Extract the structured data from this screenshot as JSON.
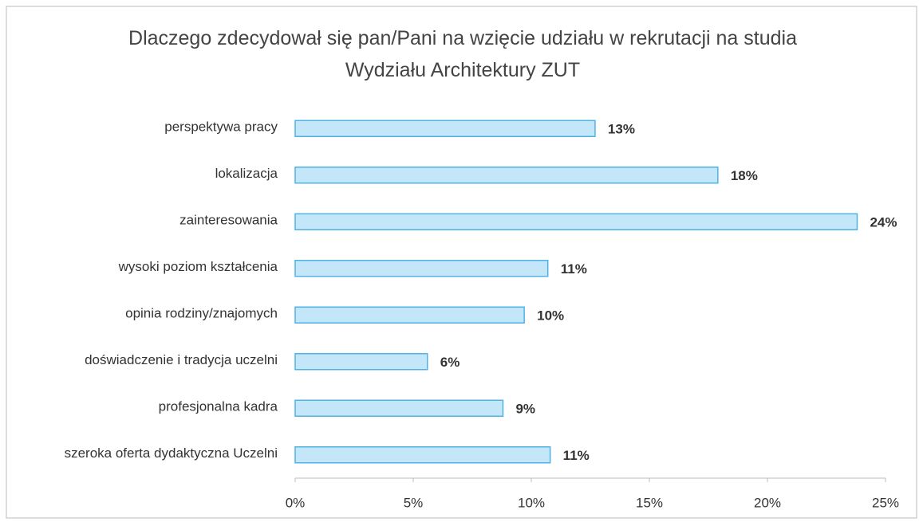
{
  "chart_data": {
    "type": "barh",
    "title": "Dlaczego zdecydował się pan/Pani na wzięcie udziału w rekrutacji na studia Wydziału Architektury ZUT",
    "categories": [
      "perspektywa pracy",
      "lokalizacja",
      "zainteresowania",
      "wysoki poziom kształcenia",
      "opinia rodziny/znajomych",
      "doświadczenie i tradycja uczelni",
      "profesjonalna kadra",
      "szeroka oferta dydaktyczna Uczelni"
    ],
    "values": [
      12.7,
      17.9,
      23.8,
      10.7,
      9.7,
      5.6,
      8.8,
      10.8
    ],
    "value_labels": [
      "13%",
      "18%",
      "24%",
      "11%",
      "10%",
      "6%",
      "9%",
      "11%"
    ],
    "color": "#c3e6f8",
    "edge_color": "#4fb3e6",
    "xlim": [
      0,
      25
    ],
    "xticks": [
      {
        "value": 0,
        "label": "0%"
      },
      {
        "value": 5,
        "label": "5%"
      },
      {
        "value": 10,
        "label": "10%"
      },
      {
        "value": 15,
        "label": "15%"
      },
      {
        "value": 20,
        "label": "20%"
      },
      {
        "value": 25,
        "label": "25%"
      }
    ]
  }
}
